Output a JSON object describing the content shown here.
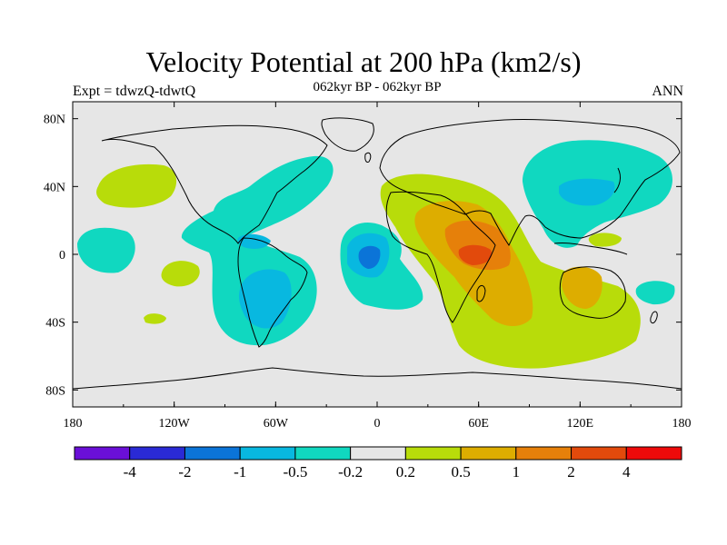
{
  "title": "Velocity Potential at 200 hPa (km2/s)",
  "subtitle_left": "Expt = tdwzQ-tdwtQ",
  "subtitle_center": "062kyr BP - 062kyr BP",
  "subtitle_right": "ANN",
  "x_ticks": [
    "180",
    "120W",
    "60W",
    "0",
    "60E",
    "120E",
    "180"
  ],
  "y_ticks": [
    "80N",
    "40N",
    "0",
    "40S",
    "80S"
  ],
  "colorbar": {
    "colors": [
      "#6a0fd8",
      "#2a2ad6",
      "#0b74d8",
      "#08b8e0",
      "#10d8c0",
      "#e6e6e6",
      "#b8dc0a",
      "#ddad00",
      "#e6800a",
      "#e24a0c",
      "#ee0a0a"
    ],
    "labels": [
      "-4",
      "-2",
      "-1",
      "-0.5",
      "-0.2",
      "0.2",
      "0.5",
      "1",
      "2",
      "4"
    ]
  }
}
